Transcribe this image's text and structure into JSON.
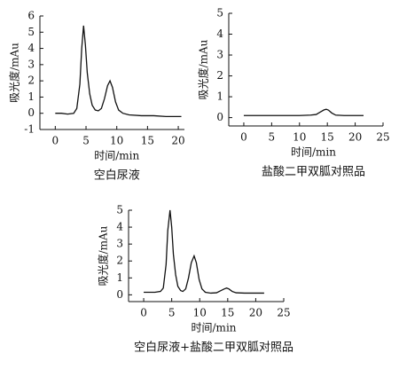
{
  "chart_data": [
    {
      "type": "line",
      "ylabel": "吸光度/mAu",
      "xlabel": "时间/min",
      "caption": "空白尿液",
      "color": "#111111",
      "xlim": [
        -2.5,
        21
      ],
      "ylim": [
        -1,
        6
      ],
      "xticks": [
        0,
        5,
        10,
        15,
        20
      ],
      "yticks": [
        -1,
        0,
        1,
        2,
        3,
        4,
        5,
        6
      ],
      "x": [
        0,
        1,
        2,
        3,
        3.5,
        4,
        4.3,
        4.6,
        4.9,
        5.2,
        5.6,
        6,
        6.5,
        7,
        7.5,
        8,
        8.5,
        8.9,
        9.3,
        9.8,
        10.3,
        11,
        12,
        14,
        16,
        18,
        20.5
      ],
      "values": [
        0,
        0,
        -0.05,
        0,
        0.3,
        1.8,
        4,
        5.4,
        4.2,
        2.5,
        1.2,
        0.5,
        0.2,
        0.15,
        0.3,
        0.9,
        1.7,
        2.0,
        1.6,
        0.7,
        0.2,
        0,
        -0.1,
        -0.15,
        -0.15,
        -0.2,
        -0.2
      ]
    },
    {
      "type": "line",
      "ylabel": "吸光度/mAu",
      "xlabel": "时间/min",
      "caption": "盐酸二甲双胍对照品",
      "color": "#111111",
      "xlim": [
        -2.7,
        25
      ],
      "ylim": [
        -0.4,
        5
      ],
      "xticks": [
        0,
        5,
        10,
        15,
        20,
        25
      ],
      "yticks": [
        0,
        1,
        2,
        3,
        4,
        5
      ],
      "x": [
        0,
        2,
        4,
        6,
        8,
        10,
        12,
        13,
        13.8,
        14.4,
        14.8,
        15.2,
        15.8,
        16.5,
        18,
        20,
        21.5
      ],
      "values": [
        0.1,
        0.1,
        0.1,
        0.1,
        0.1,
        0.1,
        0.12,
        0.15,
        0.28,
        0.37,
        0.4,
        0.36,
        0.22,
        0.12,
        0.1,
        0.1,
        0.1
      ]
    },
    {
      "type": "line",
      "ylabel": "吸光度/mAu",
      "xlabel": "时间/min",
      "caption": "空白尿液+盐酸二甲双胍对照品",
      "color": "#111111",
      "xlim": [
        -2.7,
        25
      ],
      "ylim": [
        -0.4,
        5
      ],
      "xticks": [
        0,
        5,
        10,
        15,
        20,
        25
      ],
      "yticks": [
        0,
        1,
        2,
        3,
        4,
        5
      ],
      "x": [
        0,
        1,
        2,
        3,
        3.5,
        4,
        4.3,
        4.7,
        5,
        5.3,
        5.7,
        6.1,
        6.6,
        7,
        7.5,
        8,
        8.5,
        9,
        9.4,
        9.9,
        10.4,
        11,
        12,
        13,
        13.8,
        14.4,
        14.8,
        15.2,
        15.8,
        16.5,
        18,
        20,
        21.5
      ],
      "values": [
        0.15,
        0.15,
        0.15,
        0.2,
        0.4,
        1.8,
        3.8,
        5.0,
        4.0,
        2.4,
        1.2,
        0.5,
        0.25,
        0.2,
        0.35,
        1.0,
        1.9,
        2.3,
        1.9,
        0.9,
        0.35,
        0.15,
        0.1,
        0.12,
        0.25,
        0.35,
        0.4,
        0.35,
        0.2,
        0.12,
        0.1,
        0.1,
        0.1
      ]
    }
  ]
}
